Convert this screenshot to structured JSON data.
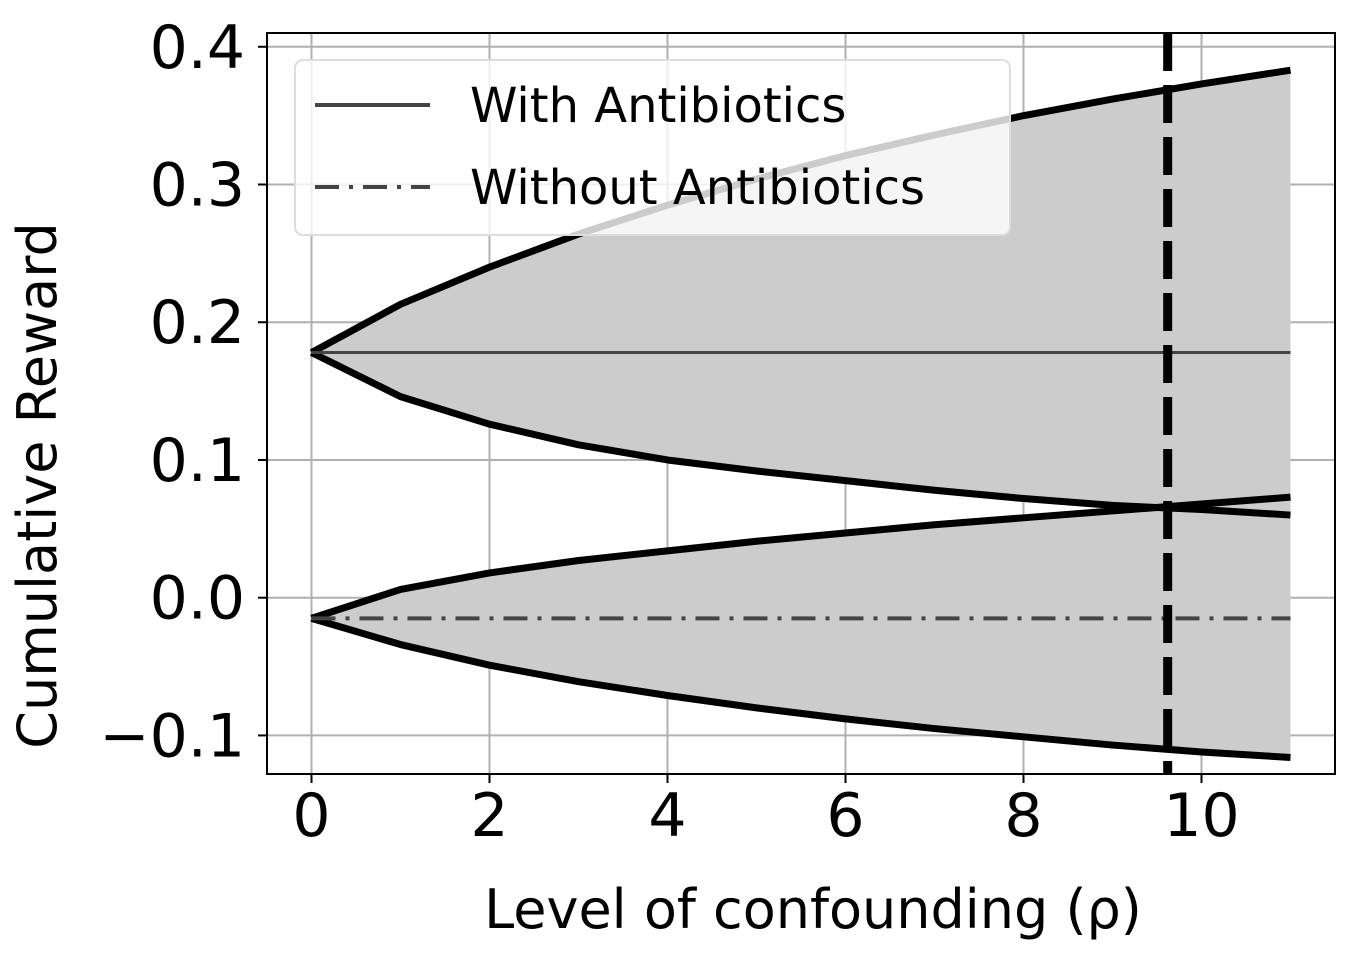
{
  "chart_data": {
    "type": "line",
    "xlabel": "Level of confounding (ρ)",
    "ylabel": "Cumulative Reward",
    "xlim": [
      -0.5,
      11.5
    ],
    "ylim": [
      -0.128,
      0.41
    ],
    "xticks": [
      0,
      2,
      4,
      6,
      8,
      10
    ],
    "xtick_labels": [
      "0",
      "2",
      "4",
      "6",
      "8",
      "10"
    ],
    "yticks": [
      -0.1,
      0.0,
      0.1,
      0.2,
      0.3,
      0.4
    ],
    "ytick_labels": [
      "−0.1",
      "0.0",
      "0.1",
      "0.2",
      "0.3",
      "0.4"
    ],
    "grid": true,
    "legend_position": "top-left",
    "x": [
      0,
      1,
      2,
      3,
      4,
      5,
      6,
      7,
      8,
      9,
      10,
      11
    ],
    "series": [
      {
        "name": "With Antibiotics",
        "style": "solid",
        "color": "#444444",
        "values": [
          0.178,
          0.178,
          0.178,
          0.178,
          0.178,
          0.178,
          0.178,
          0.178,
          0.178,
          0.178,
          0.178,
          0.178
        ],
        "upper": [
          0.178,
          0.213,
          0.24,
          0.264,
          0.285,
          0.304,
          0.321,
          0.336,
          0.35,
          0.362,
          0.373,
          0.383
        ],
        "lower": [
          0.178,
          0.146,
          0.126,
          0.111,
          0.1,
          0.092,
          0.085,
          0.078,
          0.072,
          0.067,
          0.064,
          0.06
        ]
      },
      {
        "name": "Without Antibiotics",
        "style": "dashdot",
        "color": "#444444",
        "values": [
          -0.015,
          -0.015,
          -0.015,
          -0.015,
          -0.015,
          -0.015,
          -0.015,
          -0.015,
          -0.015,
          -0.015,
          -0.015,
          -0.015
        ],
        "upper": [
          -0.015,
          0.006,
          0.018,
          0.027,
          0.034,
          0.041,
          0.047,
          0.053,
          0.058,
          0.063,
          0.068,
          0.073
        ],
        "lower": [
          -0.015,
          -0.034,
          -0.049,
          -0.061,
          -0.071,
          -0.08,
          -0.088,
          -0.095,
          -0.101,
          -0.107,
          -0.112,
          -0.116
        ]
      }
    ],
    "band_color": "#cccccc",
    "vline": {
      "x": 9.62,
      "style": "dashed",
      "color": "#000000"
    }
  }
}
